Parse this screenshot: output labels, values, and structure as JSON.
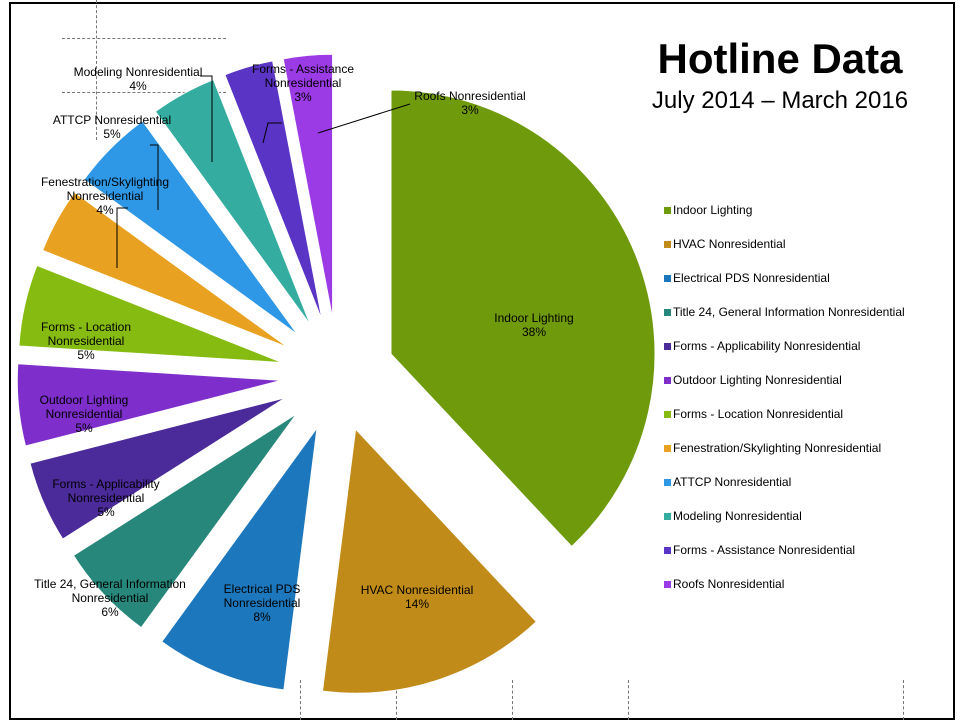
{
  "chart_data": {
    "type": "pie",
    "title": "Hotline Data",
    "subtitle": "July 2014 – March 2016",
    "legend_position": "right",
    "slices": [
      {
        "label": "Indoor Lighting",
        "value": 38,
        "value_label": "38%",
        "color": "#6E9A0B"
      },
      {
        "label": "HVAC Nonresidential",
        "value": 14,
        "value_label": "14%",
        "color": "#C08B18"
      },
      {
        "label": "Electrical PDS Nonresidential",
        "value": 8,
        "value_label": "8%",
        "color": "#1C77BD"
      },
      {
        "label": "Title 24, General Information Nonresidential",
        "value": 6,
        "value_label": "6%",
        "color": "#27877A"
      },
      {
        "label": "Forms - Applicability Nonresidential",
        "value": 5,
        "value_label": "5%",
        "color": "#4B2A9A"
      },
      {
        "label": "Outdoor Lighting Nonresidential",
        "value": 5,
        "value_label": "5%",
        "color": "#7D2ECB"
      },
      {
        "label": "Forms - Location Nonresidential",
        "value": 5,
        "value_label": "5%",
        "color": "#86BC12"
      },
      {
        "label": "Fenestration/Skylighting Nonresidential",
        "value": 4,
        "value_label": "4%",
        "color": "#E8A120"
      },
      {
        "label": "ATTCP Nonresidential",
        "value": 5,
        "value_label": "5%",
        "color": "#2E97E6"
      },
      {
        "label": "Modeling Nonresidential",
        "value": 4,
        "value_label": "4%",
        "color": "#34ADA0"
      },
      {
        "label": "Forms - Assistance Nonresidential",
        "value": 3,
        "value_label": "3%",
        "color": "#5A34C4"
      },
      {
        "label": "Roofs Nonresidential",
        "value": 3,
        "value_label": "3%",
        "color": "#9B3BE6"
      }
    ],
    "data_labels": [
      {
        "lines": [
          "Indoor Lighting",
          "38%"
        ]
      },
      {
        "lines": [
          "HVAC Nonresidential",
          "14%"
        ]
      },
      {
        "lines": [
          "Electrical PDS",
          "Nonresidential",
          "8%"
        ]
      },
      {
        "lines": [
          "Title 24, General Information",
          "Nonresidential",
          "6%"
        ]
      },
      {
        "lines": [
          "Forms - Applicability",
          "Nonresidential",
          "5%"
        ]
      },
      {
        "lines": [
          "Outdoor Lighting",
          "Nonresidential",
          "5%"
        ]
      },
      {
        "lines": [
          "Forms - Location",
          "Nonresidential",
          "5%"
        ]
      },
      {
        "lines": [
          "Fenestration/Skylighting",
          "Nonresidential",
          "4%"
        ]
      },
      {
        "lines": [
          "ATTCP Nonresidential",
          "5%"
        ]
      },
      {
        "lines": [
          "Modeling Nonresidential",
          "4%"
        ]
      },
      {
        "lines": [
          "Forms - Assistance",
          "Nonresidential",
          "3%"
        ]
      },
      {
        "lines": [
          "Roofs Nonresidential",
          "3%"
        ]
      }
    ]
  }
}
